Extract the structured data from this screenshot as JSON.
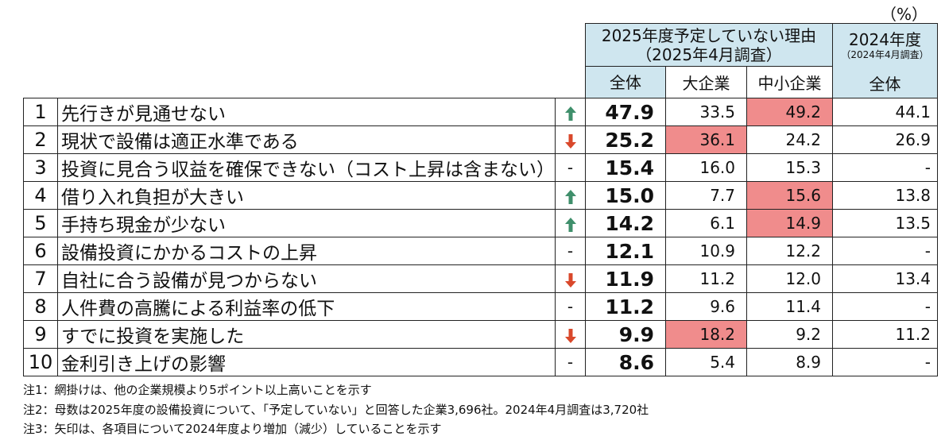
{
  "unit": "（%）",
  "header": {
    "group_label": "2025年度予定していない理由",
    "group_sublabel": "（2025年4月調査）",
    "prev_label": "2024年度",
    "prev_sublabel": "（2024年4月調査）",
    "col_total": "全体",
    "col_large": "大企業",
    "col_sme": "中小企業",
    "col_prev_total": "全体"
  },
  "rows": [
    {
      "rank": "1",
      "reason": "先行きが見通せない",
      "arrow": "up",
      "arrow_text": "",
      "total": "47.9",
      "large": "33.5",
      "sme": "49.2",
      "prev": "44.1",
      "hl_large": false,
      "hl_sme": true
    },
    {
      "rank": "2",
      "reason": "現状で設備は適正水準である",
      "arrow": "down",
      "arrow_text": "",
      "total": "25.2",
      "large": "36.1",
      "sme": "24.2",
      "prev": "26.9",
      "hl_large": true,
      "hl_sme": false
    },
    {
      "rank": "3",
      "reason": "投資に見合う収益を確保できない（コスト上昇は含まない）",
      "arrow": "none",
      "arrow_text": "-",
      "total": "15.4",
      "large": "16.0",
      "sme": "15.3",
      "prev": "-",
      "hl_large": false,
      "hl_sme": false
    },
    {
      "rank": "4",
      "reason": "借り入れ負担が大きい",
      "arrow": "up",
      "arrow_text": "",
      "total": "15.0",
      "large": "7.7",
      "sme": "15.6",
      "prev": "13.8",
      "hl_large": false,
      "hl_sme": true
    },
    {
      "rank": "5",
      "reason": "手持ち現金が少ない",
      "arrow": "up",
      "arrow_text": "",
      "total": "14.2",
      "large": "6.1",
      "sme": "14.9",
      "prev": "13.5",
      "hl_large": false,
      "hl_sme": true
    },
    {
      "rank": "6",
      "reason": "設備投資にかかるコストの上昇",
      "arrow": "none",
      "arrow_text": "-",
      "total": "12.1",
      "large": "10.9",
      "sme": "12.2",
      "prev": "-",
      "hl_large": false,
      "hl_sme": false
    },
    {
      "rank": "7",
      "reason": "自社に合う設備が見つからない",
      "arrow": "down",
      "arrow_text": "",
      "total": "11.9",
      "large": "11.2",
      "sme": "12.0",
      "prev": "13.4",
      "hl_large": false,
      "hl_sme": false
    },
    {
      "rank": "8",
      "reason": "人件費の高騰による利益率の低下",
      "arrow": "none",
      "arrow_text": "-",
      "total": "11.2",
      "large": "9.6",
      "sme": "11.4",
      "prev": "-",
      "hl_large": false,
      "hl_sme": false
    },
    {
      "rank": "9",
      "reason": "すでに投資を実施した",
      "arrow": "down",
      "arrow_text": "",
      "total": "9.9",
      "large": "18.2",
      "sme": "9.2",
      "prev": "11.2",
      "hl_large": true,
      "hl_sme": false
    },
    {
      "rank": "10",
      "reason": "金利引き上げの影響",
      "arrow": "none",
      "arrow_text": "-",
      "total": "8.6",
      "large": "5.4",
      "sme": "8.9",
      "prev": "-",
      "hl_large": false,
      "hl_sme": false
    }
  ],
  "notes": [
    "注1：網掛けは、他の企業規模より5ポイント以上高いことを示す",
    "注2：母数は2025年度の設備投資について、「予定していない」と回答した企業3,696社。2024年4月調査は3,720社",
    "注3：矢印は、各項目について2024年度より増加（減少）していることを示す"
  ],
  "colors": {
    "header_bg": "#cfe6ef",
    "highlight": "#f08c8c",
    "arrow_up": "#3f8f6b",
    "arrow_down": "#d9482b"
  }
}
